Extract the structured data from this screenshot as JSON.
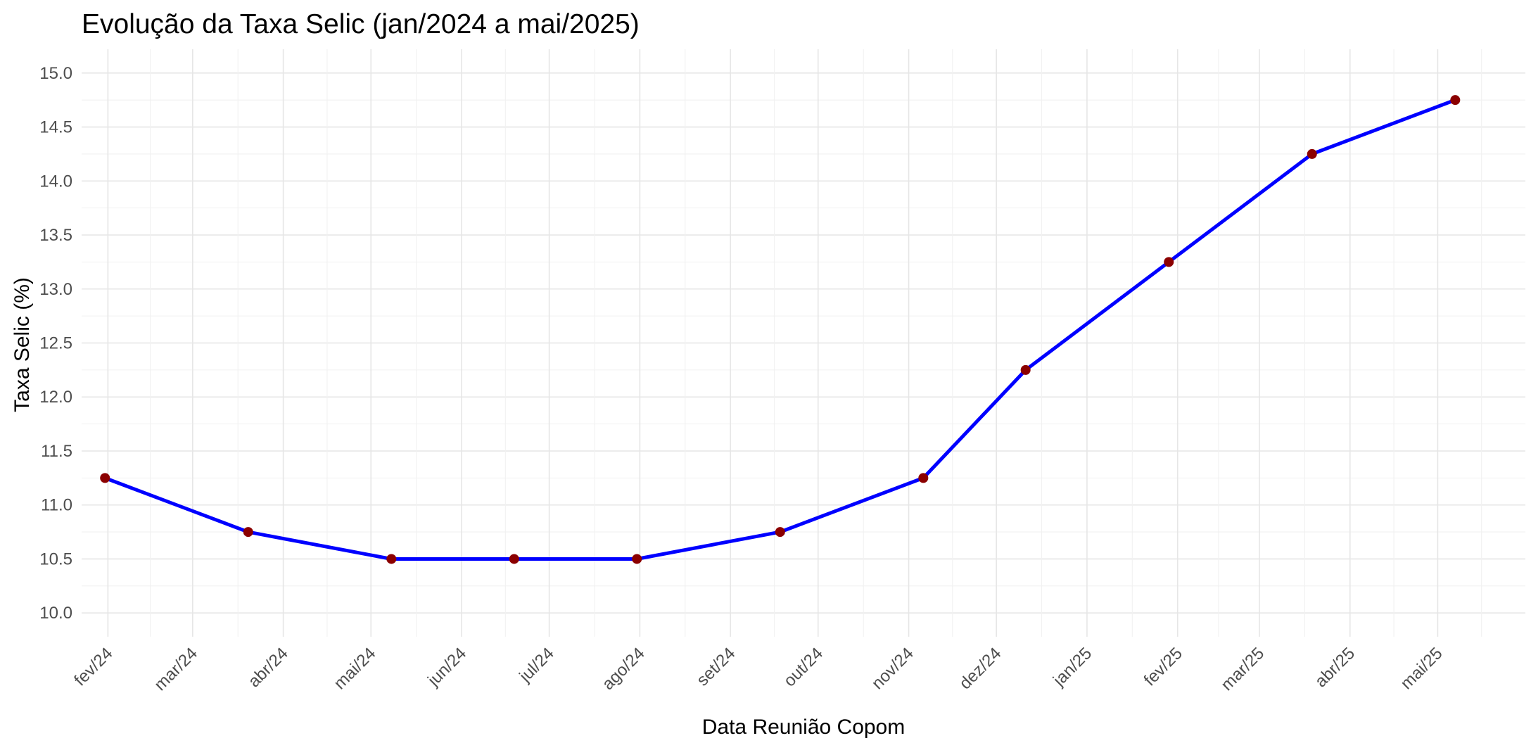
{
  "chart_data": {
    "type": "line",
    "title": "Evolução da Taxa Selic (jan/2024 a mai/2025)",
    "xlabel": "Data Reunião Copom",
    "ylabel": "Taxa Selic (%)",
    "x_ticks": [
      "fev/24",
      "mar/24",
      "abr/24",
      "mai/24",
      "jun/24",
      "jul/24",
      "ago/24",
      "set/24",
      "out/24",
      "nov/24",
      "dez/24",
      "jan/25",
      "fev/25",
      "mar/25",
      "abr/25",
      "mai/25"
    ],
    "y_ticks": [
      "10.0",
      "10.5",
      "11.0",
      "11.5",
      "12.0",
      "12.5",
      "13.0",
      "13.5",
      "14.0",
      "14.5",
      "15.0"
    ],
    "xlim": [
      "2024-01-23",
      "2025-05-31"
    ],
    "ylim": [
      9.78,
      15.22
    ],
    "grid": true,
    "legend": "none",
    "series": [
      {
        "line_color": "#0000ff",
        "marker_color": "#8b0000",
        "points": [
          {
            "x": "2024-01-31",
            "y": 11.25
          },
          {
            "x": "2024-03-20",
            "y": 10.75
          },
          {
            "x": "2024-05-08",
            "y": 10.5
          },
          {
            "x": "2024-06-19",
            "y": 10.5
          },
          {
            "x": "2024-07-31",
            "y": 10.5
          },
          {
            "x": "2024-09-18",
            "y": 10.75
          },
          {
            "x": "2024-11-06",
            "y": 11.25
          },
          {
            "x": "2024-12-11",
            "y": 12.25
          },
          {
            "x": "2025-01-29",
            "y": 13.25
          },
          {
            "x": "2025-03-19",
            "y": 14.25
          },
          {
            "x": "2025-05-07",
            "y": 14.75
          }
        ]
      }
    ]
  }
}
